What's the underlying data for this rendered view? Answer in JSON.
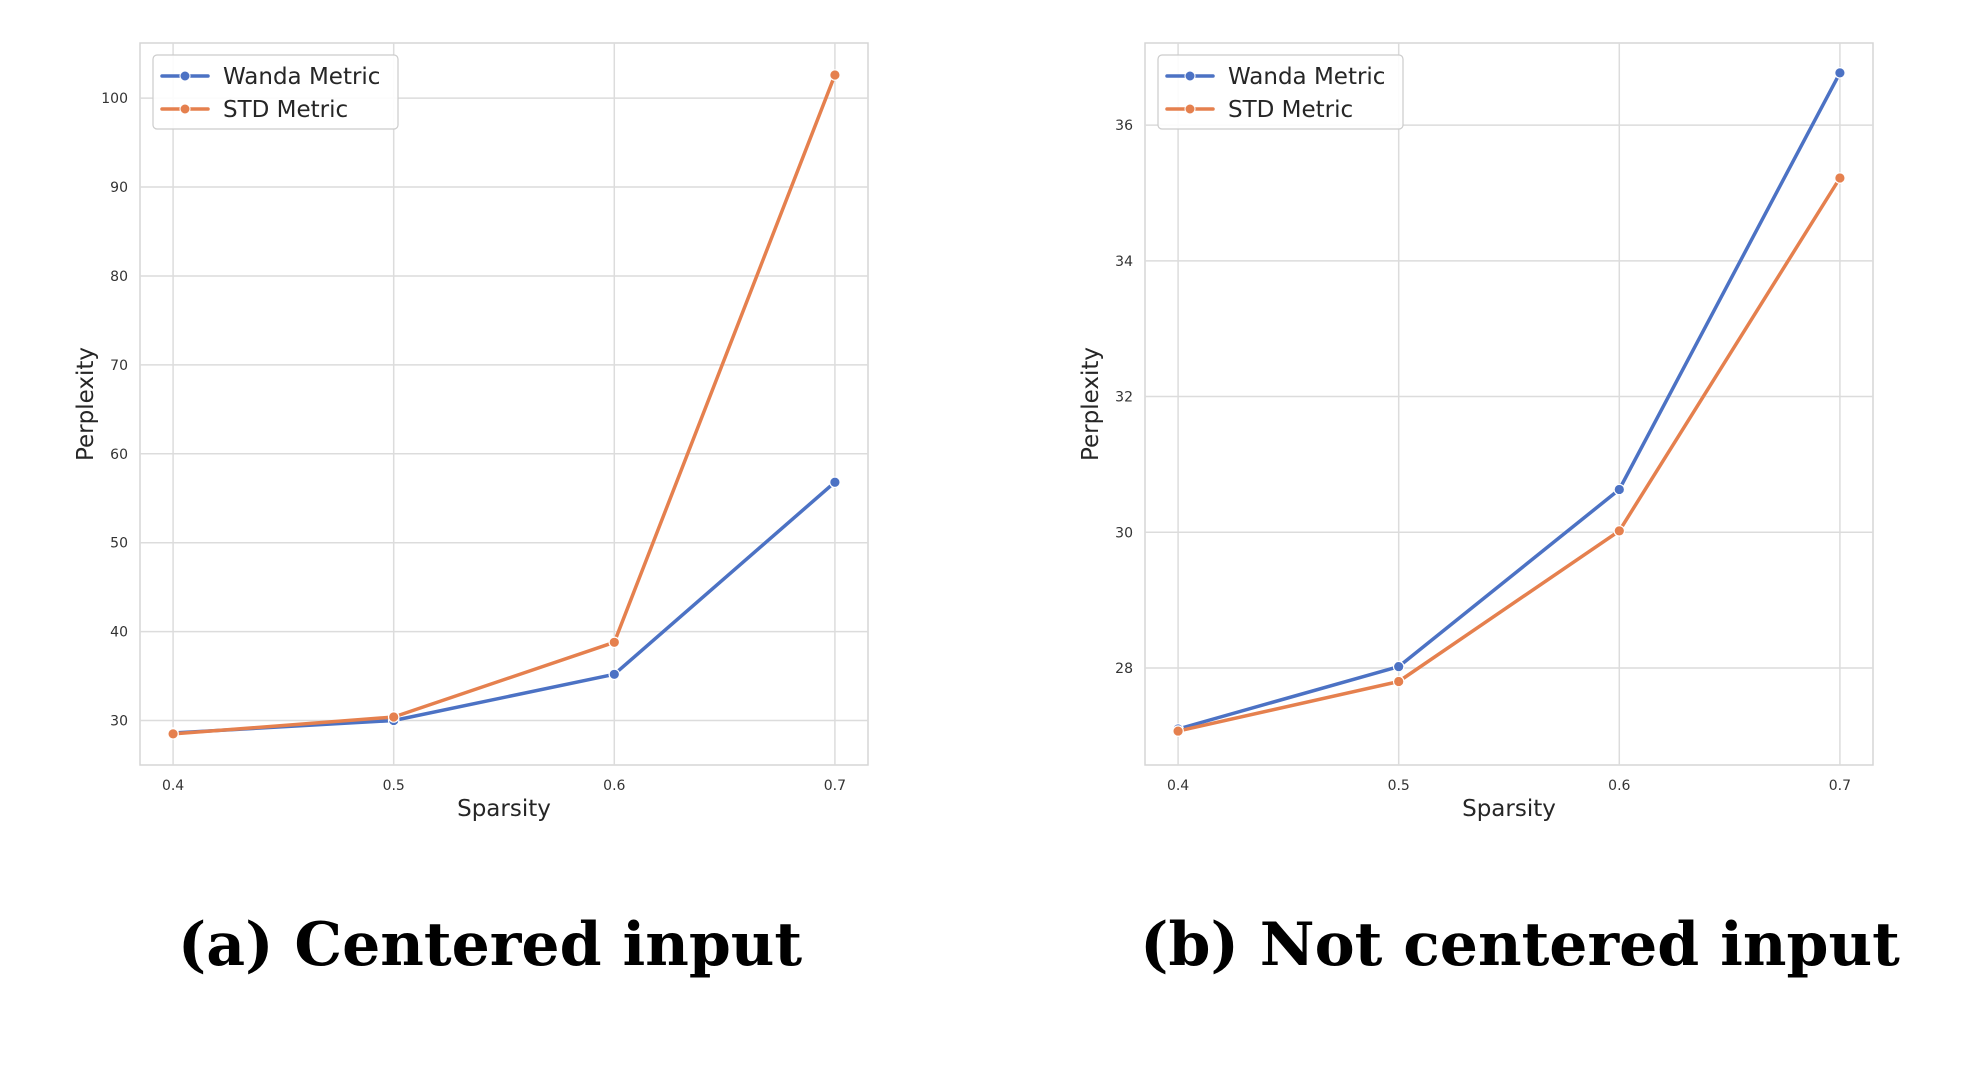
{
  "chart_data": [
    {
      "type": "line",
      "caption": "(a) Centered input",
      "xlabel": "Sparsity",
      "ylabel": "Perplexity",
      "x": [
        0.4,
        0.5,
        0.6,
        0.7
      ],
      "xticks": [
        "0.4",
        "0.5",
        "0.6",
        "0.7"
      ],
      "xlim": [
        0.385,
        0.715
      ],
      "yticks": [
        30,
        40,
        50,
        60,
        70,
        80,
        90,
        100
      ],
      "ylim": [
        25,
        106.2
      ],
      "grid": true,
      "legend_position": "top-left",
      "series": [
        {
          "name": "Wanda Metric",
          "color": "#4C72C4",
          "values": [
            28.6,
            30.0,
            35.2,
            56.8
          ]
        },
        {
          "name": "STD Metric",
          "color": "#E5804E",
          "values": [
            28.5,
            30.4,
            38.8,
            102.6
          ]
        }
      ]
    },
    {
      "type": "line",
      "caption": "(b) Not centered input",
      "xlabel": "Sparsity",
      "ylabel": "Perplexity",
      "x": [
        0.4,
        0.5,
        0.6,
        0.7
      ],
      "xticks": [
        "0.4",
        "0.5",
        "0.6",
        "0.7"
      ],
      "xlim": [
        0.385,
        0.715
      ],
      "yticks": [
        28,
        30,
        32,
        34,
        36
      ],
      "ylim": [
        26.57,
        37.21
      ],
      "grid": true,
      "legend_position": "top-left",
      "series": [
        {
          "name": "Wanda Metric",
          "color": "#4C72C4",
          "values": [
            27.1,
            28.02,
            30.63,
            36.77
          ]
        },
        {
          "name": "STD Metric",
          "color": "#E5804E",
          "values": [
            27.07,
            27.8,
            30.02,
            35.22
          ]
        }
      ]
    }
  ]
}
